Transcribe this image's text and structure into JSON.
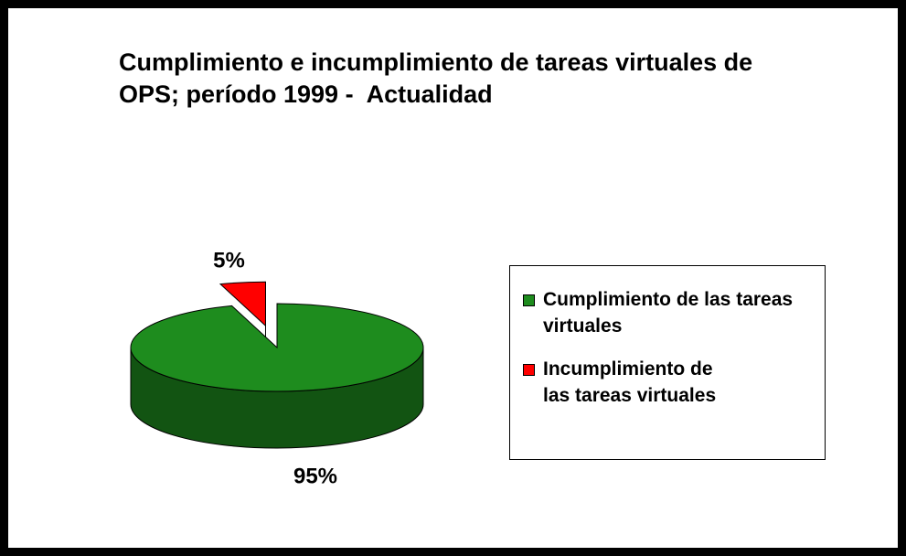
{
  "chart_data": {
    "type": "pie",
    "title": "Cumplimiento e incumplimiento de tareas virtuales de OPS; período 1999 -  Actualidad",
    "categories": [
      "Cumplimiento de las tareas virtuales",
      "Incumplimiento de las tareas virtuales"
    ],
    "values": [
      95,
      5
    ],
    "value_labels": [
      "95%",
      "5%"
    ],
    "colors": [
      "#1e8c1e",
      "#ff0000"
    ],
    "legend": "right"
  }
}
